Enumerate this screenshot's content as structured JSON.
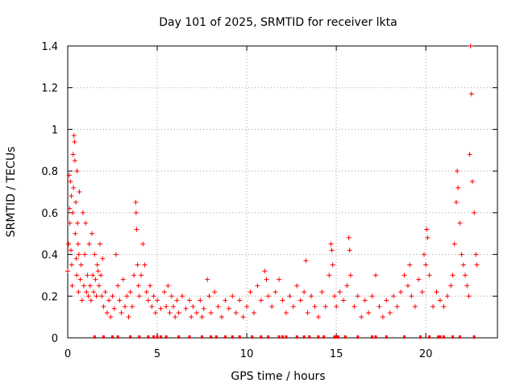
{
  "chart_data": {
    "type": "scatter",
    "title": "Day 101 of 2025, SRMTID for receiver lkta",
    "xlabel": "GPS time / hours",
    "ylabel": "SRMTID / TECUs",
    "xlim": [
      0,
      24
    ],
    "ylim": [
      0,
      1.4
    ],
    "xticks": [
      "0",
      "5",
      "10",
      "15",
      "20"
    ],
    "xtick_values": [
      0,
      5,
      10,
      15,
      20
    ],
    "yticks": [
      "0",
      "0.2",
      "0.4",
      "0.6",
      "0.8",
      "1",
      "1.2",
      "1.4"
    ],
    "ytick_values": [
      0,
      0.2,
      0.4,
      0.6,
      0.8,
      1.0,
      1.2,
      1.4
    ],
    "grid": true,
    "marker": "plus",
    "series_color": "#ff0000",
    "series": [
      {
        "name": "SRMTID",
        "points": [
          [
            0.0,
            0.32
          ],
          [
            0.05,
            0.45
          ],
          [
            0.08,
            0.78
          ],
          [
            0.1,
            0.62
          ],
          [
            0.12,
            0.55
          ],
          [
            0.15,
            0.75
          ],
          [
            0.18,
            0.42
          ],
          [
            0.2,
            0.68
          ],
          [
            0.22,
            0.35
          ],
          [
            0.25,
            0.25
          ],
          [
            0.28,
            0.6
          ],
          [
            0.3,
            0.88
          ],
          [
            0.32,
            0.72
          ],
          [
            0.35,
            0.97
          ],
          [
            0.38,
            0.94
          ],
          [
            0.4,
            0.85
          ],
          [
            0.42,
            0.5
          ],
          [
            0.45,
            0.65
          ],
          [
            0.48,
            0.38
          ],
          [
            0.5,
            0.3
          ],
          [
            0.52,
            0.8
          ],
          [
            0.55,
            0.55
          ],
          [
            0.58,
            0.45
          ],
          [
            0.6,
            0.22
          ],
          [
            0.62,
            0.4
          ],
          [
            0.65,
            0.7
          ],
          [
            0.7,
            0.28
          ],
          [
            0.75,
            0.35
          ],
          [
            0.8,
            0.18
          ],
          [
            0.85,
            0.6
          ],
          [
            0.9,
            0.25
          ],
          [
            0.95,
            0.4
          ],
          [
            1.0,
            0.55
          ],
          [
            1.05,
            0.22
          ],
          [
            1.1,
            0.3
          ],
          [
            1.15,
            0.2
          ],
          [
            1.2,
            0.45
          ],
          [
            1.25,
            0.25
          ],
          [
            1.3,
            0.18
          ],
          [
            1.35,
            0.5
          ],
          [
            1.4,
            0.3
          ],
          [
            1.45,
            0.22
          ],
          [
            1.5,
            0.4
          ],
          [
            1.55,
            0.28
          ],
          [
            1.6,
            0.2
          ],
          [
            1.65,
            0.35
          ],
          [
            1.7,
            0.32
          ],
          [
            1.75,
            0.25
          ],
          [
            1.8,
            0.45
          ],
          [
            1.85,
            0.3
          ],
          [
            1.9,
            0.2
          ],
          [
            1.95,
            0.38
          ],
          [
            2.0,
            0.15
          ],
          [
            2.1,
            0.22
          ],
          [
            2.2,
            0.12
          ],
          [
            2.3,
            0.18
          ],
          [
            2.4,
            0.1
          ],
          [
            2.5,
            0.2
          ],
          [
            2.6,
            0.14
          ],
          [
            2.7,
            0.4
          ],
          [
            2.8,
            0.25
          ],
          [
            2.9,
            0.18
          ],
          [
            3.0,
            0.12
          ],
          [
            3.1,
            0.28
          ],
          [
            3.2,
            0.15
          ],
          [
            3.3,
            0.2
          ],
          [
            3.4,
            0.1
          ],
          [
            3.5,
            0.22
          ],
          [
            3.6,
            0.15
          ],
          [
            3.7,
            0.3
          ],
          [
            3.8,
            0.65
          ],
          [
            3.82,
            0.6
          ],
          [
            3.85,
            0.52
          ],
          [
            3.9,
            0.35
          ],
          [
            3.95,
            0.25
          ],
          [
            4.0,
            0.2
          ],
          [
            4.1,
            0.3
          ],
          [
            4.2,
            0.45
          ],
          [
            4.3,
            0.35
          ],
          [
            4.4,
            0.22
          ],
          [
            4.5,
            0.18
          ],
          [
            4.6,
            0.25
          ],
          [
            4.7,
            0.15
          ],
          [
            4.8,
            0.2
          ],
          [
            4.9,
            0.12
          ],
          [
            5.0,
            0.18
          ],
          [
            5.2,
            0.14
          ],
          [
            5.4,
            0.22
          ],
          [
            5.5,
            0.15
          ],
          [
            5.6,
            0.25
          ],
          [
            5.7,
            0.12
          ],
          [
            5.8,
            0.2
          ],
          [
            5.9,
            0.15
          ],
          [
            6.0,
            0.1
          ],
          [
            6.1,
            0.18
          ],
          [
            6.2,
            0.12
          ],
          [
            6.4,
            0.2
          ],
          [
            6.6,
            0.14
          ],
          [
            6.8,
            0.18
          ],
          [
            6.9,
            0.1
          ],
          [
            7.0,
            0.15
          ],
          [
            7.2,
            0.12
          ],
          [
            7.4,
            0.18
          ],
          [
            7.5,
            0.1
          ],
          [
            7.6,
            0.14
          ],
          [
            7.8,
            0.28
          ],
          [
            7.9,
            0.2
          ],
          [
            8.0,
            0.12
          ],
          [
            8.2,
            0.22
          ],
          [
            8.4,
            0.15
          ],
          [
            8.6,
            0.1
          ],
          [
            8.8,
            0.18
          ],
          [
            9.0,
            0.14
          ],
          [
            9.2,
            0.2
          ],
          [
            9.4,
            0.12
          ],
          [
            9.6,
            0.18
          ],
          [
            9.8,
            0.1
          ],
          [
            10.0,
            0.15
          ],
          [
            10.2,
            0.22
          ],
          [
            10.4,
            0.12
          ],
          [
            10.6,
            0.25
          ],
          [
            10.8,
            0.18
          ],
          [
            11.0,
            0.32
          ],
          [
            11.1,
            0.28
          ],
          [
            11.2,
            0.2
          ],
          [
            11.4,
            0.15
          ],
          [
            11.6,
            0.22
          ],
          [
            11.8,
            0.28
          ],
          [
            12.0,
            0.18
          ],
          [
            12.2,
            0.12
          ],
          [
            12.4,
            0.2
          ],
          [
            12.6,
            0.15
          ],
          [
            12.8,
            0.25
          ],
          [
            13.0,
            0.18
          ],
          [
            13.2,
            0.22
          ],
          [
            13.3,
            0.37
          ],
          [
            13.4,
            0.12
          ],
          [
            13.6,
            0.2
          ],
          [
            13.8,
            0.15
          ],
          [
            14.0,
            0.1
          ],
          [
            14.2,
            0.22
          ],
          [
            14.4,
            0.15
          ],
          [
            14.6,
            0.3
          ],
          [
            14.7,
            0.45
          ],
          [
            14.75,
            0.42
          ],
          [
            14.8,
            0.35
          ],
          [
            14.9,
            0.2
          ],
          [
            15.0,
            0.15
          ],
          [
            15.2,
            0.22
          ],
          [
            15.4,
            0.18
          ],
          [
            15.6,
            0.25
          ],
          [
            15.7,
            0.48
          ],
          [
            15.75,
            0.42
          ],
          [
            15.8,
            0.3
          ],
          [
            16.0,
            0.15
          ],
          [
            16.2,
            0.2
          ],
          [
            16.4,
            0.1
          ],
          [
            16.6,
            0.18
          ],
          [
            16.8,
            0.12
          ],
          [
            17.0,
            0.2
          ],
          [
            17.2,
            0.3
          ],
          [
            17.4,
            0.15
          ],
          [
            17.6,
            0.1
          ],
          [
            17.8,
            0.18
          ],
          [
            18.0,
            0.12
          ],
          [
            18.2,
            0.2
          ],
          [
            18.4,
            0.15
          ],
          [
            18.6,
            0.22
          ],
          [
            18.8,
            0.3
          ],
          [
            19.0,
            0.25
          ],
          [
            19.1,
            0.35
          ],
          [
            19.2,
            0.2
          ],
          [
            19.4,
            0.15
          ],
          [
            19.6,
            0.28
          ],
          [
            19.8,
            0.22
          ],
          [
            19.9,
            0.4
          ],
          [
            20.0,
            0.35
          ],
          [
            20.05,
            0.52
          ],
          [
            20.1,
            0.48
          ],
          [
            20.2,
            0.3
          ],
          [
            20.4,
            0.15
          ],
          [
            20.6,
            0.22
          ],
          [
            20.8,
            0.18
          ],
          [
            21.0,
            0.15
          ],
          [
            21.2,
            0.2
          ],
          [
            21.4,
            0.25
          ],
          [
            21.5,
            0.3
          ],
          [
            21.6,
            0.45
          ],
          [
            21.7,
            0.65
          ],
          [
            21.75,
            0.8
          ],
          [
            21.8,
            0.72
          ],
          [
            21.9,
            0.55
          ],
          [
            22.0,
            0.4
          ],
          [
            22.1,
            0.35
          ],
          [
            22.2,
            0.3
          ],
          [
            22.3,
            0.25
          ],
          [
            22.4,
            0.2
          ],
          [
            22.45,
            0.88
          ],
          [
            22.5,
            1.4
          ],
          [
            22.55,
            1.17
          ],
          [
            22.6,
            0.75
          ],
          [
            22.7,
            0.6
          ],
          [
            22.8,
            0.4
          ],
          [
            22.85,
            0.35
          ]
        ]
      }
    ],
    "zero_points_x": [
      1.5,
      2.0,
      2.5,
      2.8,
      3.5,
      4.0,
      4.5,
      4.8,
      5.0,
      5.2,
      5.5,
      6.2,
      6.8,
      7.5,
      8.0,
      8.3,
      8.8,
      9.2,
      9.6,
      10.3,
      10.8,
      11.2,
      11.8,
      12.0,
      12.2,
      12.8,
      13.2,
      13.5,
      14.0,
      14.3,
      14.9,
      15.0,
      15.1,
      15.5,
      16.2,
      17.0,
      17.2,
      17.8,
      18.8,
      19.7,
      20.2,
      20.7,
      20.8,
      21.0,
      21.5,
      21.9,
      22.7
    ]
  }
}
